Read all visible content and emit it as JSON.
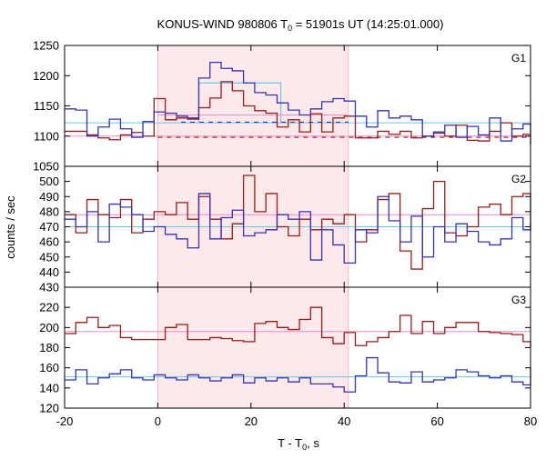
{
  "chart_data": {
    "type": "line",
    "title_main": "KONUS-WIND 980806 T",
    "title_sub": "0",
    "title_rest": " = 51901s UT (14:25:01.000)",
    "xlabel_main": "T - T",
    "xlabel_sub": "0",
    "xlabel_rest": ", s",
    "ylabel": "counts / sec",
    "xlim": [
      -20,
      80
    ],
    "x_ticks": [
      -20,
      0,
      20,
      40,
      60,
      80
    ],
    "shaded_interval": [
      0,
      40.9
    ],
    "colors": {
      "background_band": "#fde8ea",
      "red_series": "#9b1b1b",
      "blue_series": "#3333bb",
      "cyan": "#6cc8e8",
      "pink": "#f08cd0"
    },
    "panels": [
      {
        "label": "G1",
        "ylim": [
          1050,
          1250
        ],
        "y_ticks": [
          1050,
          1100,
          1150,
          1200,
          1250
        ],
        "series": [
          {
            "color_key": "red_series",
            "x_edges": [
              -20,
              -17.6,
              -15.2,
              -12.8,
              -10.4,
              -8,
              -5.6,
              -3.2,
              -0.8,
              1.6,
              4,
              6.4,
              8.8,
              11.2,
              13.6,
              16,
              18.4,
              20.8,
              23.2,
              25.6,
              28,
              30.4,
              32.8,
              35.2,
              37.6,
              40,
              42.4,
              44.8,
              47.2,
              49.6,
              52,
              54.4,
              56.8,
              59.2,
              61.6,
              64,
              66.4,
              68.8,
              71.2,
              73.6,
              76,
              78.4,
              80
            ],
            "values": [
              1108,
              1108,
              1102,
              1097,
              1094,
              1102,
              1106,
              1100,
              1162,
              1127,
              1130,
              1128,
              1147,
              1163,
              1190,
              1175,
              1150,
              1142,
              1138,
              1115,
              1127,
              1107,
              1137,
              1107,
              1130,
              1133,
              1097,
              1097,
              1108,
              1103,
              1108,
              1097,
              1100,
              1105,
              1100,
              1118,
              1093,
              1092,
              1108,
              1122,
              1100,
              1103,
              1086
            ]
          },
          {
            "color_key": "blue_series",
            "x_edges": [
              -20,
              -17.6,
              -15.2,
              -12.8,
              -10.4,
              -8,
              -5.6,
              -3.2,
              -0.8,
              1.6,
              4,
              6.4,
              8.8,
              11.2,
              13.6,
              16,
              18.4,
              20.8,
              23.2,
              25.6,
              28,
              30.4,
              32.8,
              35.2,
              37.6,
              40,
              42.4,
              44.8,
              47.2,
              49.6,
              52,
              54.4,
              56.8,
              59.2,
              61.6,
              64,
              66.4,
              68.8,
              71.2,
              73.6,
              76,
              78.4,
              80
            ],
            "values": [
              1145,
              1143,
              1100,
              1115,
              1128,
              1112,
              1098,
              1124,
              1140,
              1138,
              1133,
              1130,
              1196,
              1222,
              1212,
              1208,
              1188,
              1172,
              1168,
              1155,
              1143,
              1135,
              1145,
              1157,
              1162,
              1158,
              1133,
              1115,
              1142,
              1130,
              1133,
              1127,
              1100,
              1107,
              1118,
              1098,
              1116,
              1102,
              1130,
              1092,
              1112,
              1120,
              1105
            ]
          }
        ],
        "hlines": [
          {
            "color_key": "cyan",
            "y": 1122
          },
          {
            "color_key": "pink",
            "y": 1100
          },
          {
            "color_key": "pink",
            "y": 1135,
            "x_range": [
              0,
              40.9
            ]
          }
        ],
        "dashed": [
          {
            "color_key": "red_series",
            "y": 1098,
            "x_range": [
              0,
              80
            ]
          },
          {
            "color_key": "blue_series",
            "y": 1123,
            "x_range": [
              5,
              40.9
            ]
          }
        ],
        "boxes": [
          {
            "color_key": "cyan",
            "x_range": [
              8.8,
              26.4
            ],
            "y": 1188,
            "base": 1122
          }
        ]
      },
      {
        "label": "G2",
        "ylim": [
          430,
          510
        ],
        "y_ticks": [
          430,
          440,
          450,
          460,
          470,
          480,
          490,
          500
        ],
        "series": [
          {
            "color_key": "red_series",
            "x_edges": [
              -20,
              -17.6,
              -15.2,
              -12.8,
              -10.4,
              -8,
              -5.6,
              -3.2,
              -0.8,
              1.6,
              4,
              6.4,
              8.8,
              11.2,
              13.6,
              16,
              18.4,
              20.8,
              23.2,
              25.6,
              28,
              30.4,
              32.8,
              35.2,
              37.6,
              40,
              42.4,
              44.8,
              47.2,
              49.6,
              52,
              54.4,
              56.8,
              59.2,
              61.6,
              64,
              66.4,
              68.8,
              71.2,
              73.6,
              76,
              78.4,
              80
            ],
            "values": [
              478,
              466,
              488,
              478,
              476,
              488,
              466,
              475,
              480,
              478,
              486,
              475,
              490,
              475,
              462,
              472,
              504,
              480,
              492,
              470,
              464,
              475,
              468,
              475,
              472,
              478,
              460,
              468,
              488,
              492,
              454,
              442,
              482,
              500,
              466,
              464,
              470,
              483,
              485,
              478,
              490,
              492,
              470
            ]
          },
          {
            "color_key": "blue_series",
            "x_edges": [
              -20,
              -17.6,
              -15.2,
              -12.8,
              -10.4,
              -8,
              -5.6,
              -3.2,
              -0.8,
              1.6,
              4,
              6.4,
              8.8,
              11.2,
              13.6,
              16,
              18.4,
              20.8,
              23.2,
              25.6,
              28,
              30.4,
              32.8,
              35.2,
              37.6,
              40,
              42.4,
              44.8,
              47.2,
              49.6,
              52,
              54.4,
              56.8,
              59.2,
              61.6,
              64,
              66.4,
              68.8,
              71.2,
              73.6,
              76,
              78.4,
              80
            ],
            "values": [
              475,
              470,
              480,
              460,
              485,
              483,
              478,
              467,
              470,
              465,
              462,
              456,
              492,
              462,
              476,
              481,
              464,
              466,
              468,
              478,
              475,
              480,
              448,
              468,
              458,
              446,
              468,
              466,
              490,
              474,
              460,
              477,
              450,
              470,
              460,
              472,
              467,
              460,
              458,
              462,
              476,
              468,
              472
            ]
          }
        ],
        "hlines": [
          {
            "color_key": "cyan",
            "y": 470
          },
          {
            "color_key": "pink",
            "y": 478
          }
        ],
        "dashed": [],
        "boxes": []
      },
      {
        "label": "G3",
        "ylim": [
          120,
          240
        ],
        "y_ticks": [
          120,
          140,
          160,
          180,
          200,
          220
        ],
        "series": [
          {
            "color_key": "red_series",
            "x_edges": [
              -20,
              -17.6,
              -15.2,
              -12.8,
              -10.4,
              -8,
              -5.6,
              -3.2,
              -0.8,
              1.6,
              4,
              6.4,
              8.8,
              11.2,
              13.6,
              16,
              18.4,
              20.8,
              23.2,
              25.6,
              28,
              30.4,
              32.8,
              35.2,
              37.6,
              40,
              42.4,
              44.8,
              47.2,
              49.6,
              52,
              54.4,
              56.8,
              59.2,
              61.6,
              64,
              66.4,
              68.8,
              71.2,
              73.6,
              76,
              78.4,
              80
            ],
            "values": [
              194,
              205,
              210,
              200,
              202,
              190,
              188,
              188,
              188,
              200,
              203,
              188,
              188,
              190,
              189,
              187,
              186,
              204,
              206,
              200,
              198,
              208,
              220,
              190,
              184,
              195,
              182,
              186,
              190,
              196,
              212,
              194,
              206,
              194,
              200,
              205,
              205,
              196,
              195,
              194,
              193,
              186,
              180
            ]
          },
          {
            "color_key": "blue_series",
            "x_edges": [
              -20,
              -17.6,
              -15.2,
              -12.8,
              -10.4,
              -8,
              -5.6,
              -3.2,
              -0.8,
              1.6,
              4,
              6.4,
              8.8,
              11.2,
              13.6,
              16,
              18.4,
              20.8,
              23.2,
              25.6,
              28,
              30.4,
              32.8,
              35.2,
              37.6,
              40,
              42.4,
              44.8,
              47.2,
              49.6,
              52,
              54.4,
              56.8,
              59.2,
              61.6,
              64,
              66.4,
              68.8,
              71.2,
              73.6,
              76,
              78.4,
              80
            ],
            "values": [
              148,
              158,
              144,
              150,
              154,
              158,
              150,
              148,
              153,
              150,
              148,
              153,
              150,
              147,
              150,
              153,
              145,
              150,
              147,
              150,
              146,
              150,
              144,
              144,
              141,
              136,
              152,
              170,
              155,
              146,
              145,
              156,
              146,
              148,
              150,
              158,
              156,
              152,
              150,
              152,
              146,
              143,
              160
            ]
          }
        ],
        "hlines": [
          {
            "color_key": "cyan",
            "y": 151
          },
          {
            "color_key": "pink",
            "y": 196
          }
        ],
        "dashed": [],
        "boxes": []
      }
    ]
  }
}
